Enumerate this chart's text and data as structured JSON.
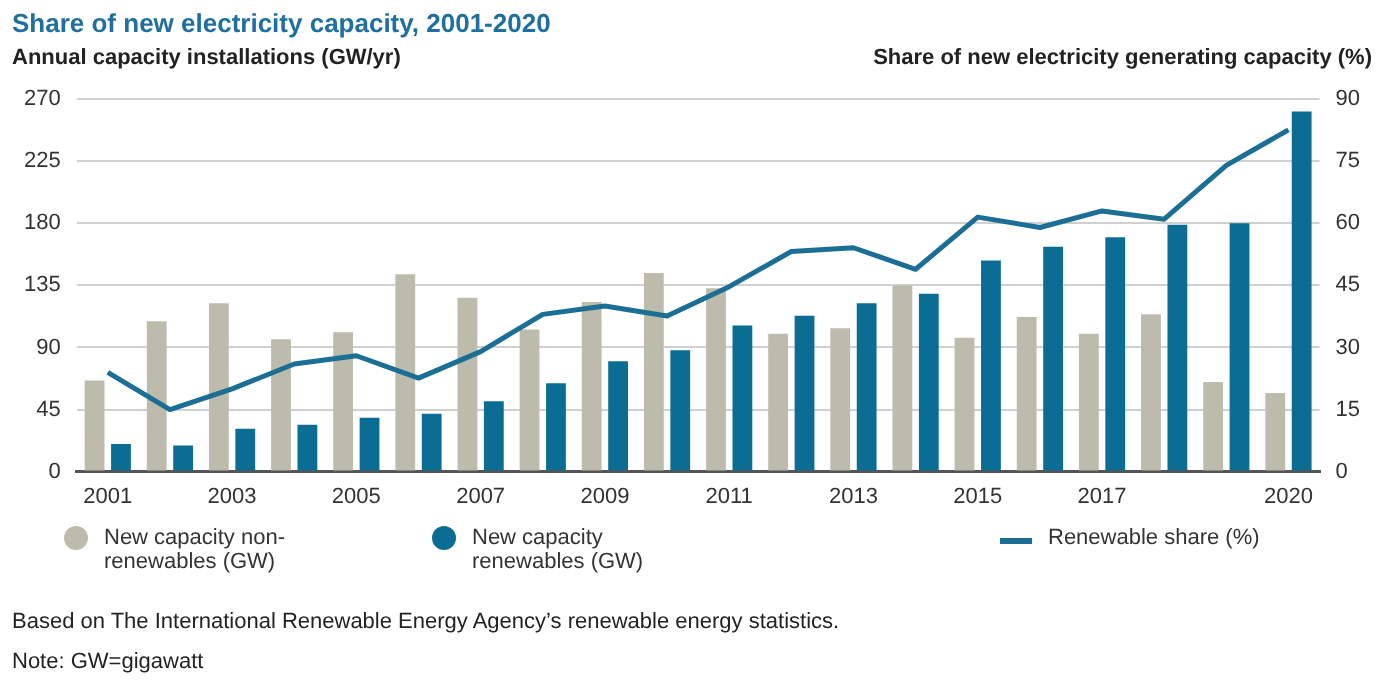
{
  "chart_data": {
    "type": "bar",
    "title": "Share of new electricity capacity, 2001-2020",
    "ylabel": "Annual capacity installations (GW/yr)",
    "y2label": "Share of new electricity generating capacity (%)",
    "categories": [
      "2001",
      null,
      "2003",
      null,
      "2005",
      null,
      "2007",
      null,
      "2009",
      null,
      "2011",
      null,
      "2013",
      null,
      "2015",
      null,
      "2017",
      null,
      null,
      "2020"
    ],
    "series": [
      {
        "name": "New capacity non-renewables (GW)",
        "color": "#bdbbab",
        "values": [
          66,
          109,
          122,
          96,
          101,
          143,
          126,
          103,
          123,
          144,
          133,
          100,
          104,
          135,
          97,
          112,
          100,
          114,
          65,
          57
        ]
      },
      {
        "name": "New capacity renewables (GW)",
        "color": "#0b6d94",
        "values": [
          20,
          19,
          31,
          34,
          39,
          42,
          51,
          64,
          80,
          88,
          106,
          113,
          122,
          129,
          153,
          163,
          170,
          179,
          180,
          261
        ]
      },
      {
        "name": "Renewable share (%)",
        "type": "line",
        "axis": "y2",
        "color": "#1b6f95",
        "values": [
          24,
          15,
          20,
          26,
          28,
          22.6,
          29,
          38,
          40,
          37.6,
          44.7,
          53.2,
          54.1,
          48.9,
          61.5,
          59,
          63,
          61,
          74,
          82.6
        ]
      }
    ],
    "ylim": [
      0,
      270
    ],
    "yticks": [
      0,
      45,
      90,
      135,
      180,
      225,
      270
    ],
    "y2lim": [
      0,
      90
    ],
    "y2ticks": [
      0,
      15,
      30,
      45,
      60,
      75,
      90
    ],
    "grid": "y",
    "legend": "bottom",
    "marker": "none",
    "annotations": [
      "Based on The International Renewable Energy Agency’s renewable energy statistics.",
      "Note: GW=gigawatt"
    ]
  }
}
